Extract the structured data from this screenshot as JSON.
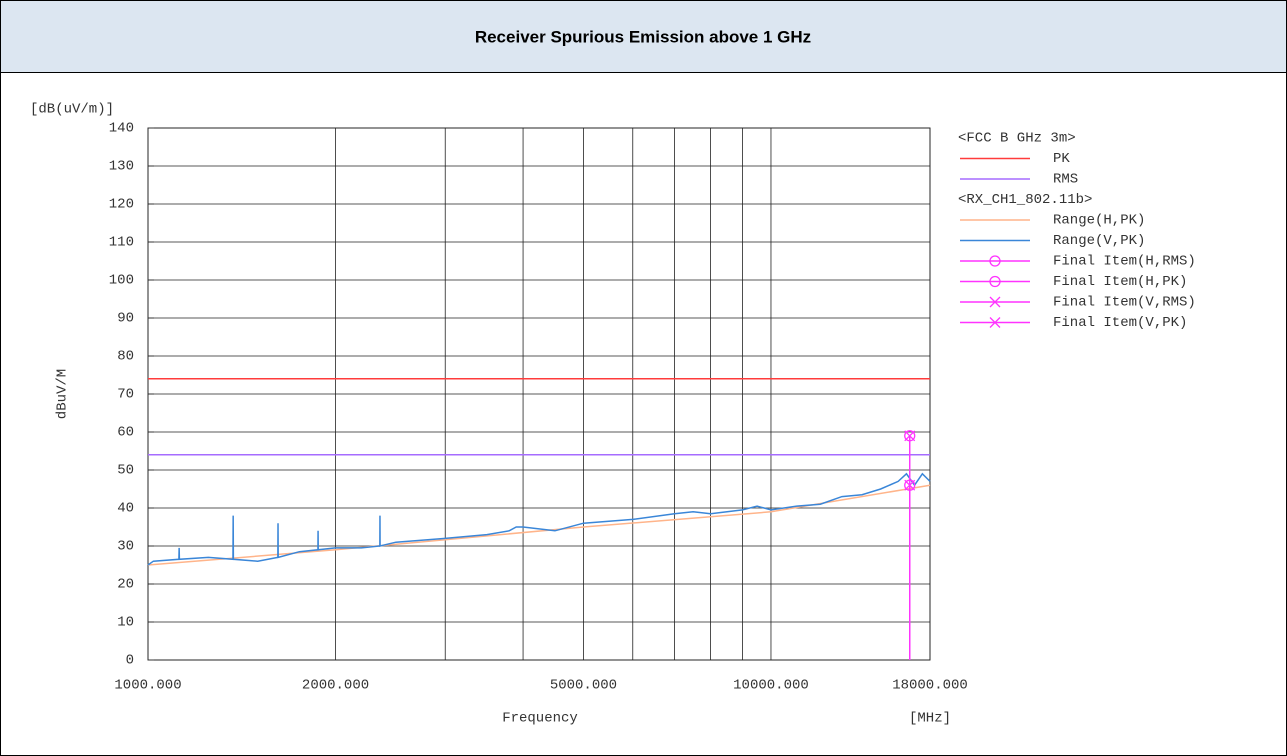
{
  "header": {
    "title": "Receiver Spurious Emission above 1 GHz"
  },
  "chart_data": {
    "type": "line",
    "y_unit": "[dB(uV/m)]",
    "ylabel": "dBuV/M",
    "xlabel": "Frequency",
    "x_unit": "[MHz]",
    "xscale": "log",
    "grid": true,
    "legend": "right",
    "xlim": [
      1000,
      18000
    ],
    "ylim": [
      0,
      140
    ],
    "xticks": [
      {
        "value": 1000,
        "label": "1000.000"
      },
      {
        "value": 2000,
        "label": "2000.000"
      },
      {
        "value": 5000,
        "label": "5000.000"
      },
      {
        "value": 10000,
        "label": "10000.000"
      },
      {
        "value": 18000,
        "label": "18000.000"
      }
    ],
    "xminor": [
      3000,
      4000,
      6000,
      7000,
      8000,
      9000
    ],
    "yticks": [
      0,
      10,
      20,
      30,
      40,
      50,
      60,
      70,
      80,
      90,
      100,
      110,
      120,
      130,
      140
    ],
    "groups": [
      {
        "name": "<FCC B GHz 3m>",
        "series": [
          {
            "name": "PK",
            "color": "#ff3b3b",
            "marker": "line",
            "x": [
              1000,
              18000
            ],
            "values": [
              74,
              74
            ]
          },
          {
            "name": "RMS",
            "color": "#a66cff",
            "marker": "line",
            "x": [
              1000,
              18000
            ],
            "values": [
              54,
              54
            ]
          }
        ]
      },
      {
        "name": "<RX_CH1_802.11b>",
        "series": [
          {
            "name": "Range(H,PK)",
            "color": "#ffb48a",
            "marker": "line",
            "x": [
              1000,
              2000,
              5000,
              10000,
              18000
            ],
            "values": [
              25,
              29,
              35,
              39,
              46
            ]
          },
          {
            "name": "Range(V,PK)",
            "color": "#3a86d8",
            "marker": "line",
            "x": [
              1000,
              1020,
              1121,
              1122,
              1123,
              1250,
              1369,
              1370,
              1371,
              1500,
              1616,
              1617,
              1618,
              1750,
              1874,
              1875,
              1876,
              2000,
              2200,
              2356,
              2357,
              2358,
              2500,
              3000,
              3500,
              3800,
              3900,
              4000,
              4500,
              5000,
              6000,
              7000,
              7500,
              8000,
              9000,
              9500,
              10000,
              11000,
              12000,
              13000,
              14000,
              15000,
              16000,
              16500,
              17000,
              17500,
              18000
            ],
            "values": [
              25,
              26,
              26.5,
              29.5,
              26.5,
              27,
              26.5,
              38,
              26.5,
              26,
              27,
              36,
              27,
              28.5,
              29,
              34,
              29,
              29.5,
              29.5,
              30,
              38,
              30,
              31,
              32,
              33,
              34,
              35,
              35,
              34,
              36,
              37,
              38.5,
              39,
              38.5,
              39.5,
              40.5,
              39.5,
              40.5,
              41,
              43,
              43.5,
              45,
              47,
              49,
              46,
              49,
              47
            ]
          },
          {
            "name": "Final Item(H,RMS)",
            "color": "#ff33ff",
            "marker": "circle",
            "x": [
              16700
            ],
            "values": [
              46
            ]
          },
          {
            "name": "Final Item(H,PK)",
            "color": "#ff33ff",
            "marker": "circle",
            "x": [
              16700
            ],
            "values": [
              59
            ]
          },
          {
            "name": "Final Item(V,RMS)",
            "color": "#ff33ff",
            "marker": "x",
            "x": [
              16700
            ],
            "values": [
              46
            ]
          },
          {
            "name": "Final Item(V,PK)",
            "color": "#ff33ff",
            "marker": "x",
            "x": [
              16700
            ],
            "values": [
              59
            ]
          }
        ]
      }
    ]
  }
}
